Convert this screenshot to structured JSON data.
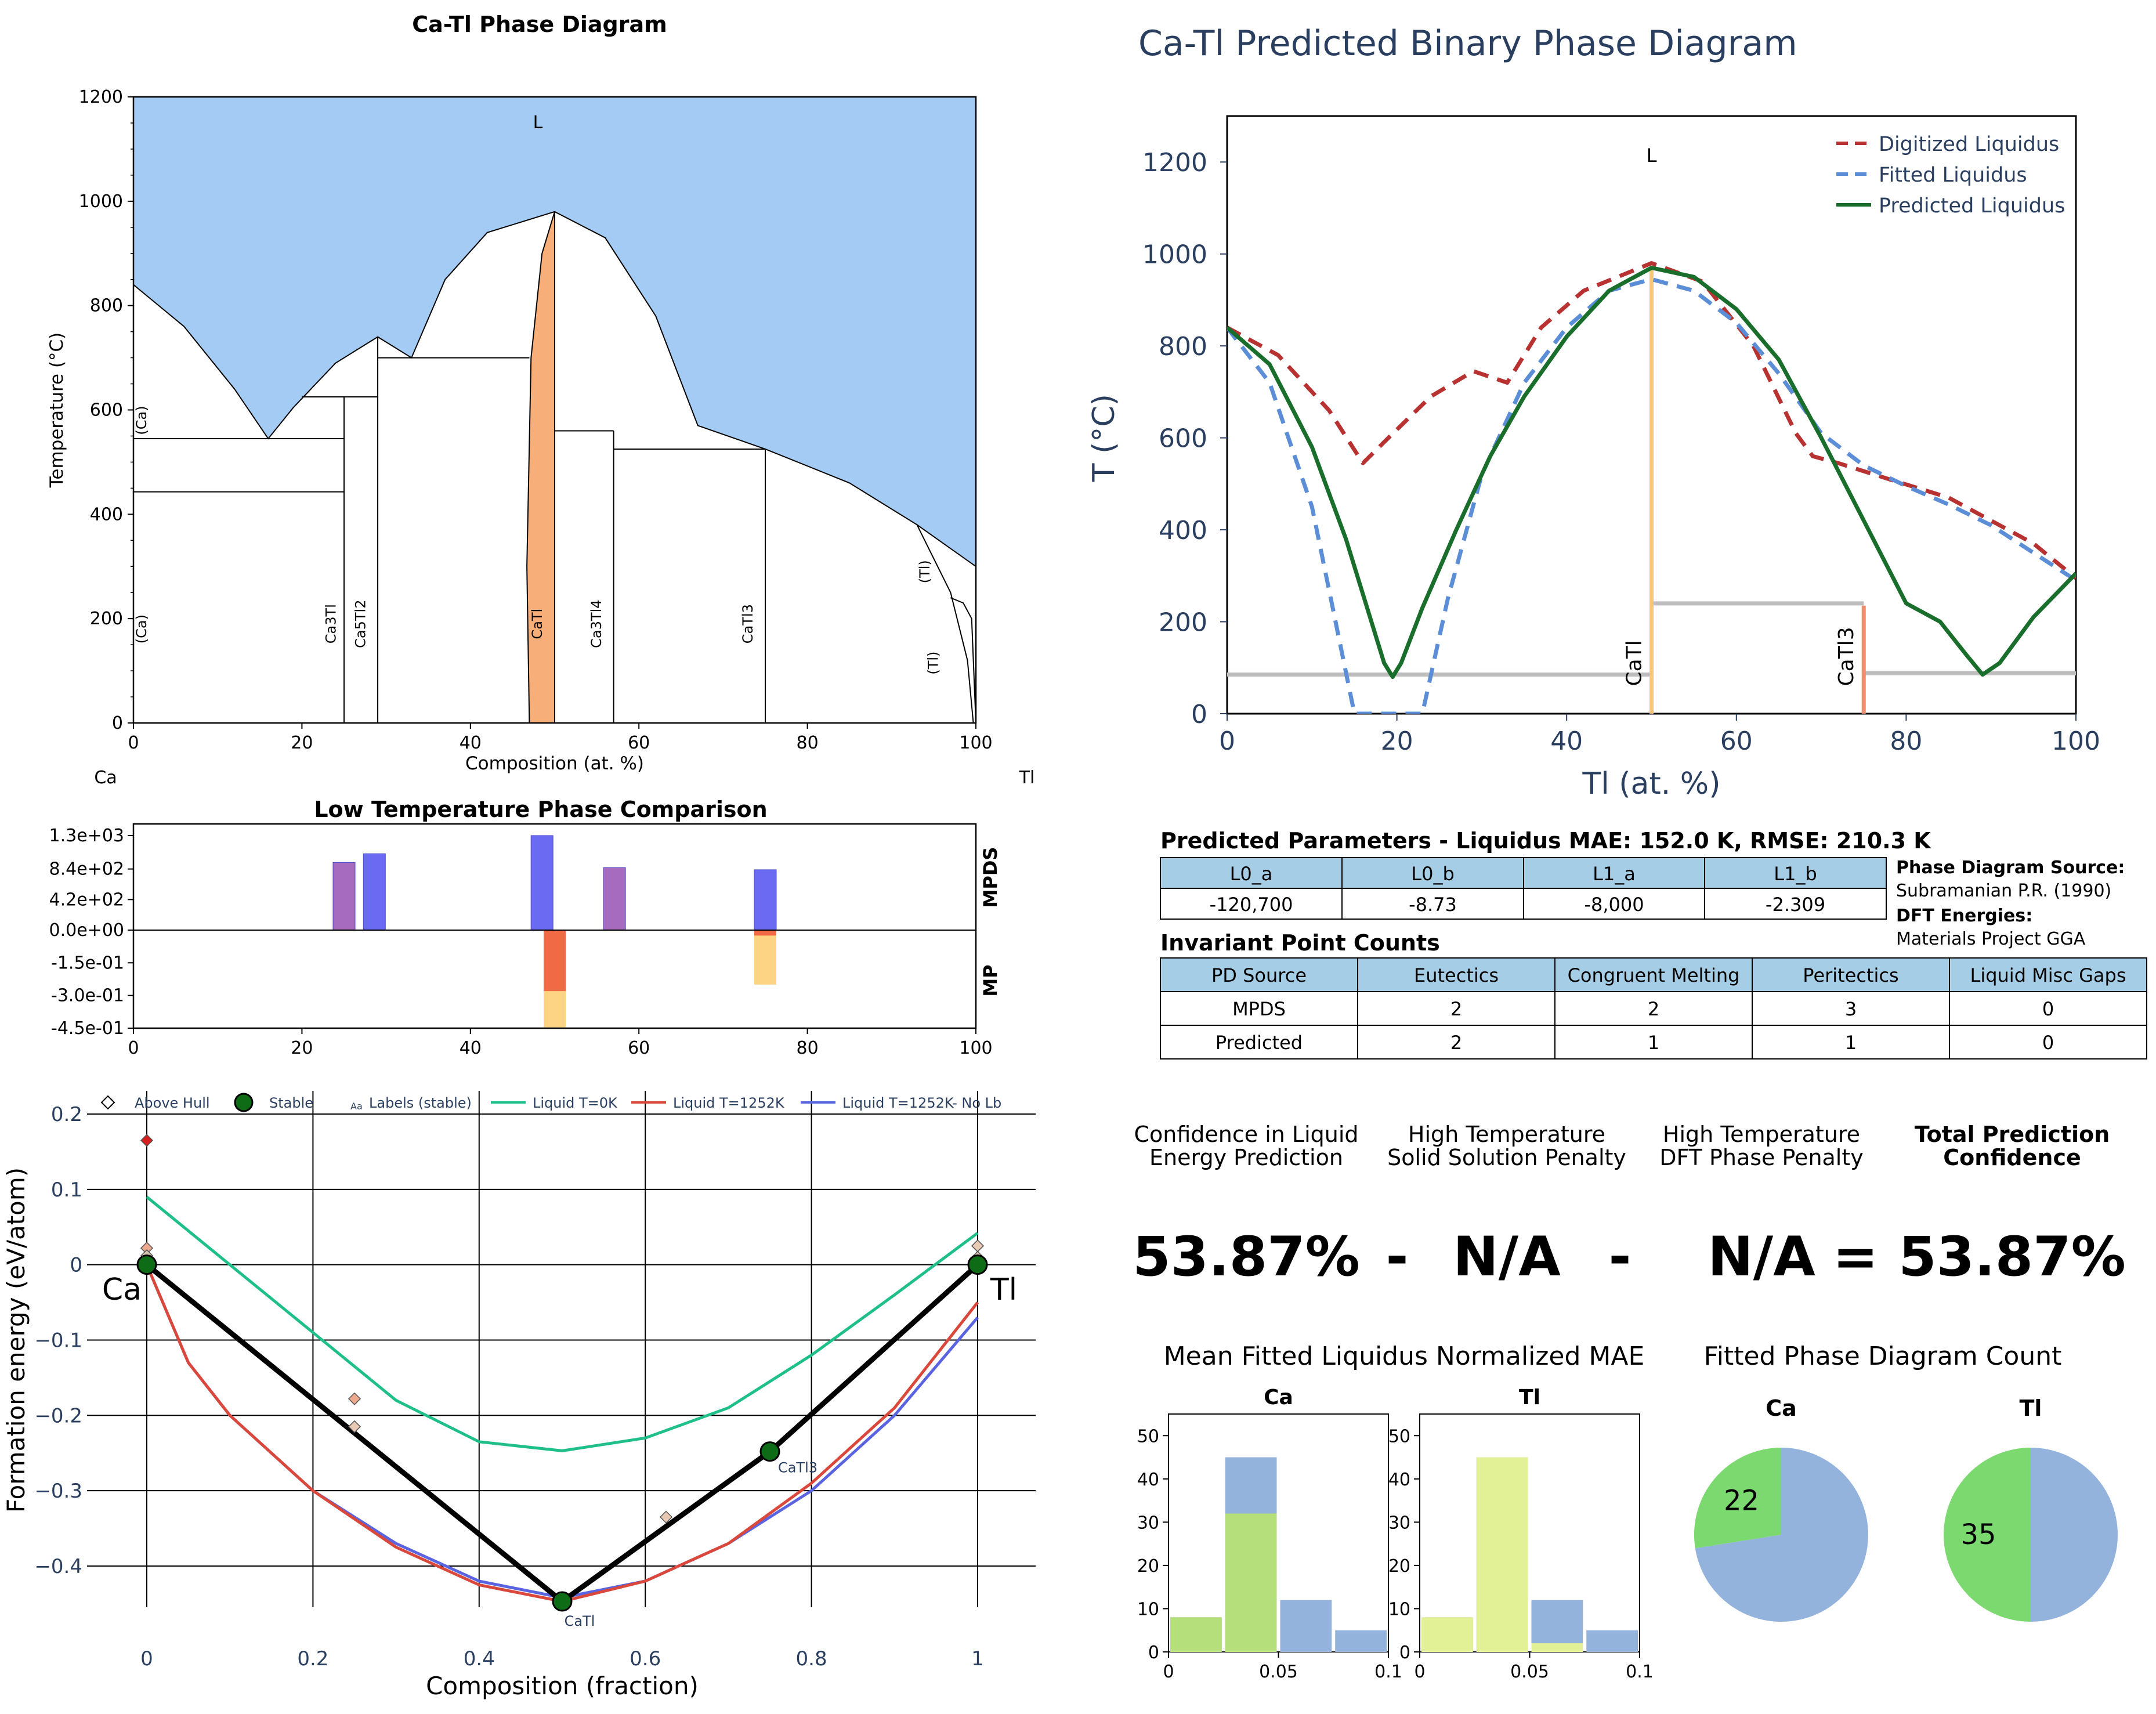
{
  "chart_data": [
    {
      "id": "phase_diagram",
      "type": "area",
      "title": "Ca-Tl Phase Diagram",
      "xlabel": "Composition (at. %)",
      "ylabel": "Temperature (°C)",
      "xlim": [
        0,
        100
      ],
      "ylim": [
        0,
        1200
      ],
      "xticks": [
        "0",
        "20",
        "40",
        "60",
        "80",
        "100"
      ],
      "yticks": [
        "0",
        "200",
        "400",
        "600",
        "800",
        "1000",
        "1200"
      ],
      "endmembers": [
        "Ca",
        "Tl"
      ],
      "liquid_label": "L",
      "liquidus": [
        [
          0,
          840
        ],
        [
          6,
          760
        ],
        [
          12,
          640
        ],
        [
          16,
          545
        ],
        [
          19,
          605
        ],
        [
          24,
          690
        ],
        [
          29,
          740
        ],
        [
          33,
          700
        ],
        [
          37,
          850
        ],
        [
          42,
          940
        ],
        [
          50,
          980
        ],
        [
          56,
          930
        ],
        [
          62,
          780
        ],
        [
          67,
          570
        ],
        [
          75,
          525
        ],
        [
          85,
          460
        ],
        [
          93,
          380
        ],
        [
          100,
          300
        ]
      ],
      "congruent_phase": {
        "name": "CaTl",
        "x_range": [
          47,
          50
        ],
        "top": 980,
        "color": "#f8ae78"
      },
      "horizontal_lines": [
        {
          "x": [
            0,
            25
          ],
          "y": 545
        },
        {
          "x": [
            0,
            25
          ],
          "y": 443
        },
        {
          "x": [
            20,
            29
          ],
          "y": 625
        },
        {
          "x": [
            29,
            47
          ],
          "y": 700
        },
        {
          "x": [
            50,
            57
          ],
          "y": 560
        },
        {
          "x": [
            57,
            75
          ],
          "y": 525
        }
      ],
      "vertical_lines": [
        {
          "x": 25,
          "y": [
            0,
            625
          ]
        },
        {
          "x": 29,
          "y": [
            0,
            740
          ]
        },
        {
          "x": 57,
          "y": [
            0,
            560
          ]
        },
        {
          "x": 75,
          "y": [
            0,
            525
          ]
        }
      ],
      "phase_labels": [
        {
          "text": "(Ca)",
          "x": 1.5,
          "y": 580
        },
        {
          "text": "(Ca)",
          "x": 1.5,
          "y": 180
        },
        {
          "text": "Ca3Tl",
          "x": 24,
          "y": 190
        },
        {
          "text": "Ca5Tl2",
          "x": 27.5,
          "y": 190
        },
        {
          "text": "CaTl",
          "x": 48.5,
          "y": 190
        },
        {
          "text": "Ca3Tl4",
          "x": 55.5,
          "y": 190
        },
        {
          "text": "CaTl3",
          "x": 73.5,
          "y": 190
        },
        {
          "text": "(Tl)",
          "x": 94.5,
          "y": 290
        },
        {
          "text": "(Tl)",
          "x": 95.5,
          "y": 115
        }
      ],
      "liquid_color": "#a3cbf4"
    },
    {
      "id": "predicted_diagram",
      "type": "line",
      "title": "Ca-Tl Predicted Binary Phase Diagram",
      "xlabel": "Tl (at. %)",
      "ylabel": "T (°C)",
      "xlim": [
        0,
        100
      ],
      "ylim": [
        0,
        1300
      ],
      "xticks": [
        "0",
        "20",
        "40",
        "60",
        "80",
        "100"
      ],
      "yticks": [
        "0",
        "200",
        "400",
        "600",
        "800",
        "1000",
        "1200"
      ],
      "liquid_label": "L",
      "legend": "top-right",
      "series": [
        {
          "name": "Digitized Liquidus",
          "color": "#b83232",
          "dash": true,
          "points": [
            [
              0,
              840
            ],
            [
              6,
              780
            ],
            [
              12,
              660
            ],
            [
              16,
              545
            ],
            [
              19,
              600
            ],
            [
              24,
              690
            ],
            [
              29,
              745
            ],
            [
              33,
              720
            ],
            [
              37,
              840
            ],
            [
              42,
              920
            ],
            [
              50,
              980
            ],
            [
              56,
              940
            ],
            [
              62,
              800
            ],
            [
              67,
              610
            ],
            [
              69,
              560
            ],
            [
              72,
              545
            ],
            [
              78,
              510
            ],
            [
              85,
              470
            ],
            [
              95,
              370
            ],
            [
              100,
              295
            ]
          ]
        },
        {
          "name": "Fitted Liquidus",
          "color": "#5b8ed6",
          "dash": true,
          "points": [
            [
              0,
              840
            ],
            [
              5,
              720
            ],
            [
              10,
              450
            ],
            [
              13,
              180
            ],
            [
              15,
              0
            ],
            [
              23,
              0
            ],
            [
              26,
              250
            ],
            [
              30,
              520
            ],
            [
              35,
              720
            ],
            [
              40,
              840
            ],
            [
              45,
              920
            ],
            [
              50,
              945
            ],
            [
              55,
              920
            ],
            [
              60,
              850
            ],
            [
              65,
              740
            ],
            [
              70,
              610
            ],
            [
              75,
              540
            ],
            [
              80,
              495
            ],
            [
              85,
              455
            ],
            [
              90,
              410
            ],
            [
              95,
              350
            ],
            [
              100,
              290
            ]
          ]
        },
        {
          "name": "Predicted Liquidus",
          "color": "#1a6e2b",
          "dash": false,
          "points": [
            [
              0,
              840
            ],
            [
              5,
              760
            ],
            [
              10,
              580
            ],
            [
              14,
              380
            ],
            [
              17,
              200
            ],
            [
              18.5,
              110
            ],
            [
              19.5,
              80
            ],
            [
              20.5,
              110
            ],
            [
              23,
              230
            ],
            [
              27,
              400
            ],
            [
              31,
              560
            ],
            [
              35,
              690
            ],
            [
              40,
              820
            ],
            [
              45,
              920
            ],
            [
              50,
              970
            ],
            [
              55,
              950
            ],
            [
              60,
              880
            ],
            [
              65,
              770
            ],
            [
              70,
              600
            ],
            [
              75,
              420
            ],
            [
              80,
              240
            ],
            [
              84,
              200
            ],
            [
              87,
              130
            ],
            [
              89,
              85
            ],
            [
              91,
              110
            ],
            [
              95,
              210
            ],
            [
              100,
              305
            ]
          ]
        }
      ],
      "compound_lines": [
        {
          "name": "CaTl",
          "x": 50,
          "y_top": 970,
          "color": "#f7c873"
        },
        {
          "name": "CaTl3",
          "x": 75,
          "y_top": 235,
          "color": "#ed8e6d"
        }
      ],
      "horizontal_lines": [
        {
          "x": [
            0,
            50
          ],
          "y": 85
        },
        {
          "x": [
            50,
            75
          ],
          "y": 240
        },
        {
          "x": [
            75,
            100
          ],
          "y": 88
        }
      ]
    },
    {
      "id": "low_temp_comparison",
      "type": "bar",
      "title": "Low Temperature Phase Comparison",
      "xlim": [
        0,
        100
      ],
      "xticks": [
        "0",
        "20",
        "40",
        "60",
        "80",
        "100"
      ],
      "yticks": [
        "1.3e+03",
        "8.4e+02",
        "4.2e+02",
        "0.0e+00",
        "-1.5e-01",
        "-3.0e-01",
        "-4.5e-01"
      ],
      "top_label": "MPDS",
      "bottom_label": "MP",
      "top_ylim": [
        0,
        1300
      ],
      "bottom_ylim": [
        -0.45,
        0
      ],
      "top_bars": [
        {
          "x": 25,
          "value": 930,
          "color": "#a66bbf"
        },
        {
          "x": 28.6,
          "value": 1050,
          "color": "#6a6af2"
        },
        {
          "x": 48.5,
          "value": 1300,
          "color": "#6a6af2"
        },
        {
          "x": 57.1,
          "value": 860,
          "color": "#a66bbf"
        },
        {
          "x": 75,
          "value": 830,
          "color": "#6a6af2"
        }
      ],
      "bottom_bars": [
        {
          "x": 50,
          "value": -0.447,
          "color": "#fdd483"
        },
        {
          "x": 50,
          "value": -0.28,
          "color": "#f06a45"
        },
        {
          "x": 75,
          "value": -0.25,
          "color": "#fdd483"
        },
        {
          "x": 75,
          "value": -0.025,
          "color": "#f06a45"
        }
      ]
    },
    {
      "id": "convex_hull",
      "type": "scatter",
      "xlabel": "Composition (fraction)",
      "ylabel": "Formation energy (eV/atom)",
      "xlim": [
        0,
        1
      ],
      "ylim": [
        -0.45,
        0.2
      ],
      "xticks": [
        "0",
        "0.2",
        "0.4",
        "0.6",
        "0.8",
        "1"
      ],
      "yticks": [
        "0.2",
        "0.1",
        "0",
        "−0.1",
        "−0.2",
        "−0.3",
        "−0.4"
      ],
      "legend": [
        "Above Hull",
        "Stable",
        "Labels (stable)",
        "Liquid T=0K",
        "Liquid T=1252K",
        "Liquid T=1252K- No Lb"
      ],
      "legend_small_glyph": "Aa",
      "stable": [
        {
          "x": 0,
          "y": 0,
          "label": "Ca"
        },
        {
          "x": 0.5,
          "y": -0.447,
          "label": "CaTl"
        },
        {
          "x": 0.75,
          "y": -0.248,
          "label": "CaTl3"
        },
        {
          "x": 1,
          "y": 0,
          "label": "Tl"
        }
      ],
      "above_hull": [
        {
          "x": 0,
          "y": 0.165,
          "color": "#d62020"
        },
        {
          "x": 0,
          "y": 0.022,
          "color": "#eda98e"
        },
        {
          "x": 0,
          "y": 0.012,
          "color": "#d8c4b0"
        },
        {
          "x": 0.25,
          "y": -0.178,
          "color": "#eda98e"
        },
        {
          "x": 0.25,
          "y": -0.215,
          "color": "#e8c9b3"
        },
        {
          "x": 0.625,
          "y": -0.335,
          "color": "#e8c9b3"
        },
        {
          "x": 1,
          "y": 0.025,
          "color": "#e8c9b3"
        },
        {
          "x": 1,
          "y": 0.01,
          "color": "#d8c4b0"
        }
      ],
      "liquid_0K": {
        "color": "#1fbf8a",
        "points": [
          [
            0,
            0.09
          ],
          [
            0.1,
            0.0
          ],
          [
            0.2,
            -0.09
          ],
          [
            0.3,
            -0.18
          ],
          [
            0.4,
            -0.235
          ],
          [
            0.5,
            -0.247
          ],
          [
            0.6,
            -0.23
          ],
          [
            0.7,
            -0.19
          ],
          [
            0.8,
            -0.12
          ],
          [
            0.9,
            -0.04
          ],
          [
            1,
            0.042
          ]
        ]
      },
      "liquid_1252K": {
        "color": "#d9483b",
        "points": [
          [
            0,
            0.0
          ],
          [
            0.05,
            -0.13
          ],
          [
            0.1,
            -0.2
          ],
          [
            0.2,
            -0.3
          ],
          [
            0.3,
            -0.375
          ],
          [
            0.4,
            -0.425
          ],
          [
            0.5,
            -0.447
          ],
          [
            0.6,
            -0.42
          ],
          [
            0.7,
            -0.37
          ],
          [
            0.8,
            -0.29
          ],
          [
            0.9,
            -0.19
          ],
          [
            1,
            -0.05
          ]
        ]
      },
      "liquid_1252K_noLb": {
        "color": "#5a63e0",
        "points": [
          [
            0,
            0.0
          ],
          [
            0.05,
            -0.13
          ],
          [
            0.1,
            -0.2
          ],
          [
            0.2,
            -0.3
          ],
          [
            0.3,
            -0.37
          ],
          [
            0.4,
            -0.42
          ],
          [
            0.5,
            -0.442
          ],
          [
            0.6,
            -0.42
          ],
          [
            0.7,
            -0.37
          ],
          [
            0.8,
            -0.3
          ],
          [
            0.9,
            -0.2
          ],
          [
            1,
            -0.07
          ]
        ]
      }
    },
    {
      "id": "mae_hist_ca",
      "type": "bar",
      "title": "Ca",
      "group_title": "Mean Fitted Liquidus Normalized MAE",
      "xlim": [
        0,
        0.1
      ],
      "ylim": [
        0,
        55
      ],
      "xticks": [
        "0",
        "0.05",
        "0.1"
      ],
      "yticks": [
        "0",
        "10",
        "20",
        "30",
        "40",
        "50"
      ],
      "bins": [
        [
          0,
          0.025
        ],
        [
          0.025,
          0.05
        ],
        [
          0.05,
          0.075
        ],
        [
          0.075,
          0.1
        ]
      ],
      "back_values": [
        8,
        45,
        12,
        5
      ],
      "front_values": [
        8,
        32,
        0,
        0
      ],
      "back_color": "#93b3dc",
      "front_color": "#b5df7a"
    },
    {
      "id": "mae_hist_tl",
      "type": "bar",
      "title": "Tl",
      "xlim": [
        0,
        0.1
      ],
      "ylim": [
        0,
        55
      ],
      "xticks": [
        "0",
        "0.05",
        "0.1"
      ],
      "yticks": [
        "0",
        "10",
        "20",
        "30",
        "40",
        "50"
      ],
      "bins": [
        [
          0,
          0.025
        ],
        [
          0.025,
          0.05
        ],
        [
          0.05,
          0.075
        ],
        [
          0.075,
          0.1
        ]
      ],
      "back_values": [
        8,
        45,
        12,
        5
      ],
      "front_values": [
        8,
        45,
        2,
        0
      ],
      "back_color": "#93b3dc",
      "front_color": "#e3f196"
    },
    {
      "id": "pd_count_ca",
      "type": "pie",
      "title": "Ca",
      "group_title": "Fitted Phase Diagram Count",
      "slices": [
        {
          "value": 22,
          "color": "#7bd96f",
          "label": "22"
        },
        {
          "value": 58,
          "color": "#93b3dc",
          "label": ""
        }
      ]
    },
    {
      "id": "pd_count_tl",
      "type": "pie",
      "title": "Tl",
      "slices": [
        {
          "value": 35,
          "color": "#7bd96f",
          "label": "35"
        },
        {
          "value": 35,
          "color": "#93b3dc",
          "label": ""
        }
      ]
    }
  ],
  "params": {
    "title": "Predicted Parameters - Liquidus MAE: 152.0 K, RMSE: 210.3 K",
    "headers": [
      "L0_a",
      "L0_b",
      "L1_a",
      "L1_b"
    ],
    "values": [
      "-120,700",
      "-8.73",
      "-8,000",
      "-2.309"
    ]
  },
  "source": {
    "pd_label": "Phase Diagram Source:",
    "pd_value": "Subramanian P.R. (1990)",
    "dft_label": "DFT Energies:",
    "dft_value": "Materials Project GGA"
  },
  "invariants": {
    "title": "Invariant Point Counts",
    "headers": [
      "PD Source",
      "Eutectics",
      "Congruent Melting",
      "Peritectics",
      "Liquid Misc Gaps"
    ],
    "rows": [
      [
        "MPDS",
        "2",
        "2",
        "3",
        "0"
      ],
      [
        "Predicted",
        "2",
        "1",
        "1",
        "0"
      ]
    ]
  },
  "confidence": {
    "headers": [
      [
        "Confidence in Liquid",
        "Energy Prediction"
      ],
      [
        "High Temperature",
        "Solid Solution Penalty"
      ],
      [
        "High Temperature",
        "DFT Phase Penalty"
      ],
      [
        "Total Prediction",
        "Confidence"
      ]
    ],
    "values": [
      "53.87%",
      "N/A",
      "N/A",
      "53.87%"
    ],
    "operators": [
      "-",
      "-",
      "="
    ]
  }
}
